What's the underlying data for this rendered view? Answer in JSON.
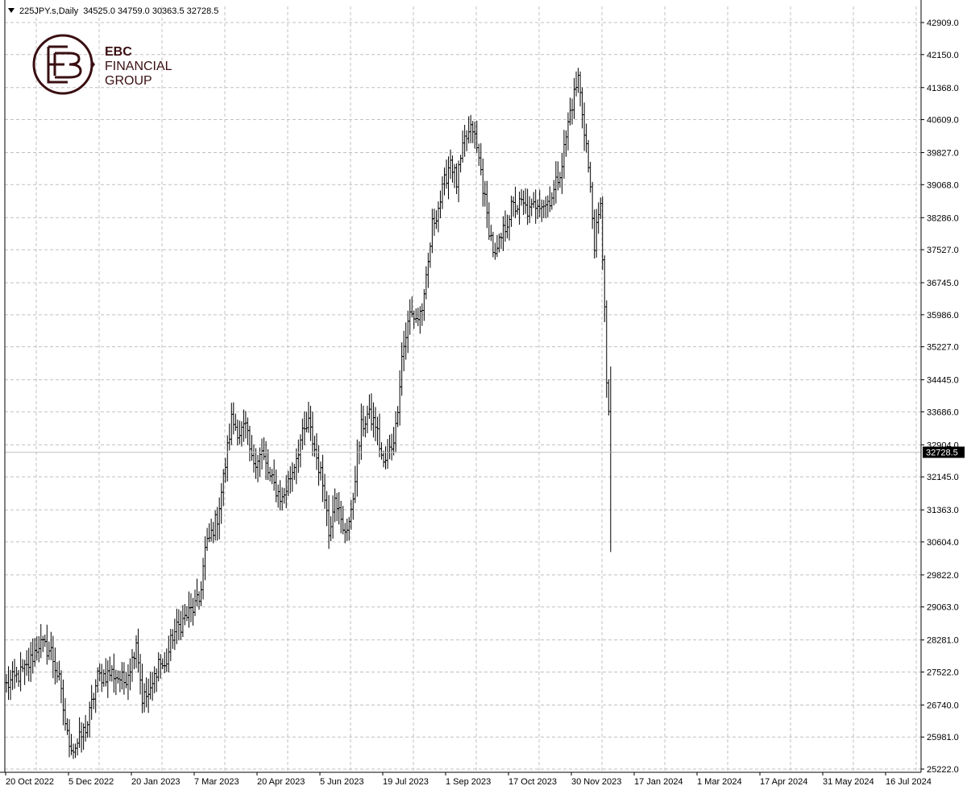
{
  "header": {
    "symbol": "225JPY.s",
    "timeframe": "Daily",
    "ohlc": "34525.0 34759.0 30363.5 32728.5"
  },
  "logo": {
    "line1": "EBC",
    "line2": "FINANCIAL",
    "line3": "GROUP",
    "color": "#3a0f12"
  },
  "colors": {
    "bars": "#000000",
    "grid": "#c0c0c0",
    "axis": "#000000",
    "price_line": "#c0c0c0",
    "price_tag_bg": "#000000",
    "price_tag_text": "#ffffff"
  },
  "chart_data": {
    "type": "ohlc",
    "timeframe": "Daily",
    "symbol": "225JPY.s",
    "grid": true,
    "ylim": [
      25222.0,
      42909.0
    ],
    "y_ticks": [
      "42909.0",
      "42150.0",
      "41368.0",
      "40609.0",
      "39827.0",
      "39068.0",
      "38286.0",
      "37527.0",
      "36745.0",
      "35986.0",
      "35227.0",
      "34445.0",
      "33686.0",
      "32904.0",
      "32145.0",
      "31363.0",
      "30604.0",
      "29822.0",
      "29063.0",
      "28281.0",
      "27522.0",
      "26740.0",
      "25981.0",
      "25222.0"
    ],
    "x_labels": [
      "20 Oct 2022",
      "5 Dec 2022",
      "20 Jan 2023",
      "7 Mar 2023",
      "20 Apr 2023",
      "5 Jun 2023",
      "19 Jul 2023",
      "1 Sep 2023",
      "17 Oct 2023",
      "30 Nov 2023",
      "17 Jan 2024",
      "1 Mar 2024",
      "17 Apr 2024",
      "31 May 2024",
      "16 Jul 2024"
    ],
    "bars_per_label": 31,
    "current_price": "32728.5",
    "anchors": [
      [
        0,
        27200
      ],
      [
        10,
        27600
      ],
      [
        16,
        28200
      ],
      [
        22,
        28000
      ],
      [
        26,
        27300
      ],
      [
        30,
        26000
      ],
      [
        33,
        25700
      ],
      [
        36,
        25900
      ],
      [
        40,
        26300
      ],
      [
        45,
        27400
      ],
      [
        52,
        27500
      ],
      [
        58,
        27300
      ],
      [
        62,
        27800
      ],
      [
        64,
        28300
      ],
      [
        67,
        26900
      ],
      [
        71,
        27000
      ],
      [
        75,
        27800
      ],
      [
        78,
        27600
      ],
      [
        82,
        28400
      ],
      [
        88,
        28800
      ],
      [
        95,
        29200
      ],
      [
        98,
        30400
      ],
      [
        104,
        31200
      ],
      [
        107,
        32100
      ],
      [
        111,
        33500
      ],
      [
        115,
        33200
      ],
      [
        118,
        33300
      ],
      [
        121,
        32500
      ],
      [
        126,
        32700
      ],
      [
        130,
        32100
      ],
      [
        136,
        31600
      ],
      [
        141,
        32300
      ],
      [
        145,
        33000
      ],
      [
        149,
        33400
      ],
      [
        153,
        32600
      ],
      [
        157,
        31800
      ],
      [
        159,
        30800
      ],
      [
        162,
        31800
      ],
      [
        166,
        30800
      ],
      [
        170,
        31200
      ],
      [
        172,
        32200
      ],
      [
        175,
        33300
      ],
      [
        178,
        33600
      ],
      [
        182,
        33400
      ],
      [
        186,
        32400
      ],
      [
        190,
        32900
      ],
      [
        192,
        33300
      ],
      [
        195,
        35000
      ],
      [
        199,
        36000
      ],
      [
        203,
        35900
      ],
      [
        206,
        36300
      ],
      [
        210,
        38100
      ],
      [
        214,
        38700
      ],
      [
        219,
        39700
      ],
      [
        222,
        39100
      ],
      [
        226,
        40100
      ],
      [
        230,
        40400
      ],
      [
        234,
        39400
      ],
      [
        237,
        38300
      ],
      [
        241,
        37300
      ],
      [
        244,
        37800
      ],
      [
        249,
        38500
      ],
      [
        254,
        38600
      ],
      [
        258,
        38400
      ],
      [
        262,
        38700
      ],
      [
        266,
        38600
      ],
      [
        270,
        38900
      ],
      [
        274,
        39600
      ],
      [
        278,
        40800
      ],
      [
        282,
        41600
      ],
      [
        286,
        40000
      ],
      [
        288,
        38900
      ],
      [
        290,
        37700
      ],
      [
        293,
        38500
      ],
      [
        295,
        36300
      ],
      [
        296,
        34300
      ],
      [
        298,
        32728.5
      ]
    ]
  }
}
